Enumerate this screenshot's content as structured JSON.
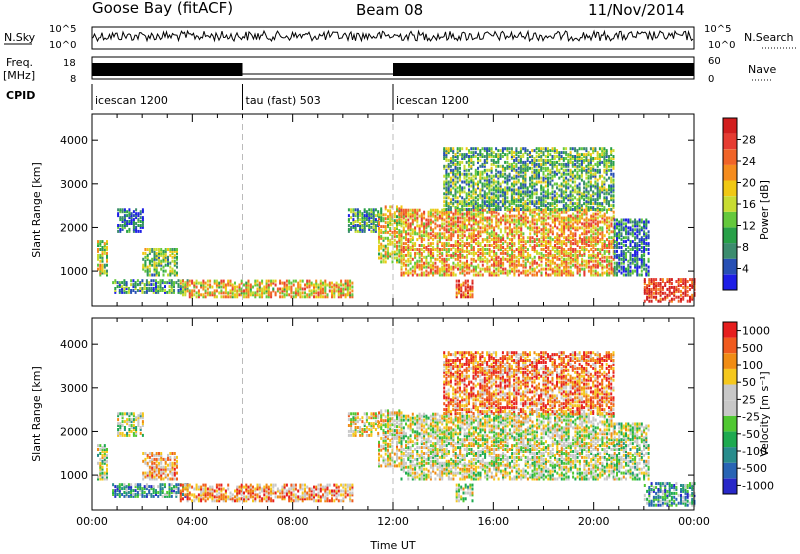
{
  "header": {
    "station": "Goose Bay (fitACF)",
    "beam": "Beam 08",
    "date": "11/Nov/2014"
  },
  "panels": {
    "nsky_label": "N.Sky",
    "nsky_ticks": [
      "10^5",
      "10^0"
    ],
    "nsearch_label": "N.Search",
    "nsearch_ticks": [
      "10^5",
      "10^0"
    ],
    "freq_label_1": "Freq.",
    "freq_label_2": "[MHz]",
    "freq_ticks": [
      "18",
      "8"
    ],
    "nave_label": "Nave",
    "nave_ticks": [
      "60",
      "0"
    ],
    "cpid_label": "CPID",
    "cpid_segments": [
      {
        "label": "icescan 1200",
        "start": 0,
        "end": 6
      },
      {
        "label": "tau (fast) 503",
        "start": 6,
        "end": 12
      },
      {
        "label": "icescan 1200",
        "start": 12,
        "end": 24
      }
    ]
  },
  "chart_data": [
    {
      "type": "heatmap",
      "name": "power",
      "xlabel": "",
      "ylabel": "Slant Range [km]",
      "xlim": [
        0,
        24
      ],
      "ylim": [
        200,
        4600
      ],
      "yticks": [
        1000,
        2000,
        3000,
        4000
      ],
      "colorbar": {
        "label": "Power [dB]",
        "ticks": [
          "4",
          "8",
          "12",
          "16",
          "20",
          "24",
          "28"
        ],
        "colors": [
          "#1e1ee6",
          "#2850b4",
          "#3c8c6e",
          "#28a048",
          "#64c83c",
          "#c8dc32",
          "#f0c814",
          "#f58c1e",
          "#f06428",
          "#e63c32",
          "#d21e1e"
        ]
      },
      "regions": [
        {
          "t0": 0.2,
          "t1": 0.6,
          "r0": 900,
          "r1": 1700,
          "level": 0.5
        },
        {
          "t0": 1.0,
          "t1": 2.0,
          "r0": 1900,
          "r1": 2400,
          "level": 0.15
        },
        {
          "t0": 2.0,
          "t1": 3.4,
          "r0": 900,
          "r1": 1500,
          "level": 0.4
        },
        {
          "t0": 0.8,
          "t1": 3.8,
          "r0": 500,
          "r1": 800,
          "level": 0.3
        },
        {
          "t0": 3.5,
          "t1": 10.4,
          "r0": 400,
          "r1": 800,
          "level": 0.6
        },
        {
          "t0": 10.2,
          "t1": 11.4,
          "r0": 1900,
          "r1": 2400,
          "level": 0.3
        },
        {
          "t0": 11.4,
          "t1": 12.3,
          "r0": 1200,
          "r1": 2500,
          "level": 0.55
        },
        {
          "t0": 12.3,
          "t1": 20.8,
          "r0": 900,
          "r1": 2400,
          "level": 0.65
        },
        {
          "t0": 14.0,
          "t1": 20.8,
          "r0": 2400,
          "r1": 3800,
          "level": 0.35
        },
        {
          "t0": 14.5,
          "t1": 15.2,
          "r0": 400,
          "r1": 800,
          "level": 0.85
        },
        {
          "t0": 20.8,
          "t1": 22.2,
          "r0": 900,
          "r1": 2200,
          "level": 0.2
        },
        {
          "t0": 22.0,
          "t1": 24.0,
          "r0": 300,
          "r1": 800,
          "level": 0.9
        }
      ]
    },
    {
      "type": "heatmap",
      "name": "velocity",
      "xlabel": "Time UT",
      "ylabel": "Slant Range [km]",
      "xlim": [
        0,
        24
      ],
      "ylim": [
        200,
        4600
      ],
      "xticks": [
        "00:00",
        "04:00",
        "08:00",
        "12:00",
        "16:00",
        "20:00",
        "00:00"
      ],
      "yticks": [
        1000,
        2000,
        3000,
        4000
      ],
      "colorbar": {
        "label": "Velocity [m s⁻¹]",
        "ticks": [
          "1000",
          "500",
          "100",
          "50",
          "25",
          "-25",
          "-50",
          "-100",
          "-500",
          "-1000"
        ],
        "colors": [
          "#2828c8",
          "#2864b4",
          "#288c8c",
          "#1eaa50",
          "#50c832",
          "#c8c8c8",
          "#c8c8c8",
          "#f5c81e",
          "#f08c14",
          "#f05a1e",
          "#e61e1e"
        ]
      },
      "regions": [
        {
          "t0": 0.2,
          "t1": 0.6,
          "r0": 900,
          "r1": 1700,
          "level": 0.5
        },
        {
          "t0": 1.0,
          "t1": 2.0,
          "r0": 1900,
          "r1": 2400,
          "level": 0.5
        },
        {
          "t0": 2.0,
          "t1": 3.4,
          "r0": 900,
          "r1": 1500,
          "level": 0.7
        },
        {
          "t0": 0.8,
          "t1": 3.8,
          "r0": 500,
          "r1": 800,
          "level": 0.3
        },
        {
          "t0": 3.5,
          "t1": 10.4,
          "r0": 400,
          "r1": 800,
          "level": 0.75
        },
        {
          "t0": 10.2,
          "t1": 11.4,
          "r0": 1900,
          "r1": 2400,
          "level": 0.6
        },
        {
          "t0": 11.4,
          "t1": 12.3,
          "r0": 1200,
          "r1": 2500,
          "level": 0.6
        },
        {
          "t0": 12.3,
          "t1": 20.8,
          "r0": 900,
          "r1": 2400,
          "level": 0.55
        },
        {
          "t0": 14.0,
          "t1": 20.8,
          "r0": 2400,
          "r1": 3800,
          "level": 0.8
        },
        {
          "t0": 14.5,
          "t1": 15.2,
          "r0": 400,
          "r1": 800,
          "level": 0.5
        },
        {
          "t0": 20.8,
          "t1": 22.2,
          "r0": 900,
          "r1": 2200,
          "level": 0.5
        },
        {
          "t0": 22.0,
          "t1": 24.0,
          "r0": 300,
          "r1": 800,
          "level": 0.3
        }
      ]
    }
  ]
}
